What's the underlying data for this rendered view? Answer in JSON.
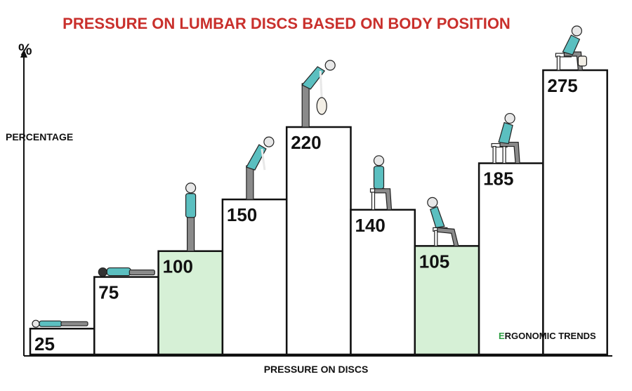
{
  "chart_data": {
    "type": "bar",
    "title": "PRESSURE ON LUMBAR DISCS BASED ON BODY POSITION",
    "xlabel": "PRESSURE ON DISCS",
    "ylabel": "PERCENTAGE",
    "yunit": "%",
    "categories": [
      "",
      "",
      "",
      "",
      "",
      "",
      "",
      "",
      ""
    ],
    "values": [
      25,
      75,
      100,
      150,
      220,
      140,
      105,
      185,
      275
    ],
    "highlighted": [
      false,
      false,
      true,
      false,
      false,
      false,
      true,
      false,
      false
    ],
    "ylim": [
      0,
      275
    ],
    "grid": false,
    "colors": {
      "bar": "#ffffff",
      "highlight": "#d6f0d6",
      "edge": "#111111",
      "title": "#c9302c",
      "figure_shirt": "#5bbfc0",
      "figure_pants": "#8a8a8a"
    },
    "postures": [
      "lying-supine",
      "lying-prone",
      "standing",
      "bent-forward",
      "bent-lifting",
      "sitting-upright",
      "sitting-reclined",
      "sitting-forward",
      "sitting-lifting"
    ]
  },
  "brand": {
    "prefix": "E",
    "rest": "RGONOMIC TRENDS"
  }
}
